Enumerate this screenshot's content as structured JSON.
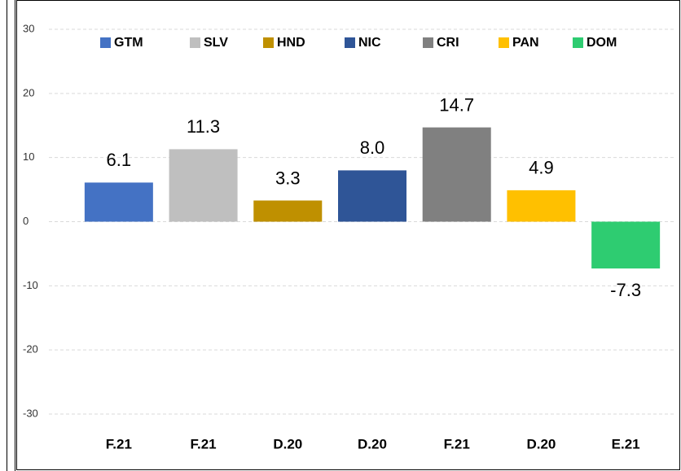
{
  "chart_data": {
    "type": "bar",
    "categories": [
      "F.21",
      "F.21",
      "D.20",
      "D.20",
      "F.21",
      "D.20",
      "E.21"
    ],
    "series": [
      {
        "name": "GTM",
        "color": "#4472c4",
        "values": [
          6.1,
          null,
          null,
          null,
          null,
          null,
          null
        ],
        "value_labels": [
          "6.1",
          null,
          null,
          null,
          null,
          null,
          null
        ]
      },
      {
        "name": "SLV",
        "color": "#bfbfbf",
        "values": [
          null,
          11.3,
          null,
          null,
          null,
          null,
          null
        ],
        "value_labels": [
          null,
          "11.3",
          null,
          null,
          null,
          null,
          null
        ]
      },
      {
        "name": "HND",
        "color": "#bf9000",
        "values": [
          null,
          null,
          3.3,
          null,
          null,
          null,
          null
        ],
        "value_labels": [
          null,
          null,
          "3.3",
          null,
          null,
          null,
          null
        ]
      },
      {
        "name": "NIC",
        "color": "#2f5597",
        "values": [
          null,
          null,
          null,
          8.0,
          null,
          null,
          null
        ],
        "value_labels": [
          null,
          null,
          null,
          "8.0",
          null,
          null,
          null
        ]
      },
      {
        "name": "CRI",
        "color": "#808080",
        "values": [
          null,
          null,
          null,
          null,
          14.7,
          null,
          null
        ],
        "value_labels": [
          null,
          null,
          null,
          null,
          "14.7",
          null,
          null
        ]
      },
      {
        "name": "PAN",
        "color": "#ffc000",
        "values": [
          null,
          null,
          null,
          null,
          null,
          4.9,
          null
        ],
        "value_labels": [
          null,
          null,
          null,
          null,
          null,
          "4.9",
          null
        ]
      },
      {
        "name": "DOM",
        "color": "#2ecc71",
        "values": [
          null,
          null,
          null,
          null,
          null,
          null,
          -7.3
        ],
        "value_labels": [
          null,
          null,
          null,
          null,
          null,
          null,
          "-7.3"
        ]
      }
    ],
    "ylim": [
      -30,
      30
    ],
    "yticks": [
      -30,
      -20,
      -10,
      0,
      10,
      20,
      30
    ],
    "grid": true,
    "legend": "top"
  }
}
